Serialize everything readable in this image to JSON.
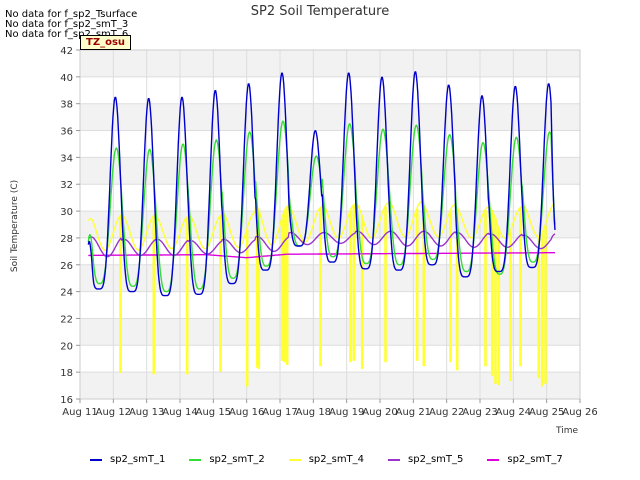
{
  "notes": [
    "No data for f_sp2_Tsurface",
    "No data for f_sp2_smT_3",
    "No data for f_sp2_smT_6"
  ],
  "tz_label": "TZ_osu",
  "chart_data": {
    "type": "line",
    "title": "SP2 Soil Temperature",
    "xlabel": "Time",
    "ylabel": "Soil Temperature (C)",
    "x_ticks": [
      "Aug 11",
      "Aug 12",
      "Aug 13",
      "Aug 14",
      "Aug 15",
      "Aug 16",
      "Aug 17",
      "Aug 18",
      "Aug 19",
      "Aug 20",
      "Aug 21",
      "Aug 22",
      "Aug 23",
      "Aug 24",
      "Aug 25",
      "Aug 26"
    ],
    "xlim": [
      0,
      15
    ],
    "ylim": [
      16,
      42
    ],
    "y_ticks": [
      16,
      18,
      20,
      22,
      24,
      26,
      28,
      30,
      32,
      34,
      36,
      38,
      40,
      42
    ],
    "grid": true,
    "legend_position": "bottom",
    "series_style": {
      "sp2_smT_1": "#0000cc",
      "sp2_smT_2": "#33dd33",
      "sp2_smT_4": "#ffff33",
      "sp2_smT_5": "#9933cc",
      "sp2_smT_7": "#dd00dd"
    },
    "series": [
      {
        "name": "sp2_smT_1",
        "color": "#0000cc",
        "x_start": 0.25,
        "x_end": 14.25,
        "daily_min": [
          24.2,
          24.0,
          23.7,
          23.8,
          24.6,
          25.6,
          27.4,
          26.2,
          25.7,
          25.6,
          26.0,
          25.1,
          25.5,
          25.8
        ],
        "daily_max": [
          38.5,
          38.4,
          38.5,
          39.0,
          39.5,
          40.3,
          36.0,
          40.3,
          40.0,
          40.4,
          39.4,
          38.6,
          39.3,
          39.5
        ],
        "start_value": 27.5,
        "end_value": 28.6
      },
      {
        "name": "sp2_smT_2",
        "color": "#33dd33",
        "x_start": 0.25,
        "x_end": 14.25,
        "daily_min": [
          24.6,
          24.4,
          24.0,
          24.2,
          25.0,
          25.9,
          27.4,
          26.6,
          26.1,
          26.0,
          26.4,
          25.5,
          25.3,
          26.2
        ],
        "daily_max": [
          34.7,
          34.6,
          35.0,
          35.3,
          35.9,
          36.7,
          34.1,
          36.5,
          36.1,
          36.4,
          35.7,
          35.1,
          35.5,
          35.9
        ],
        "start_value": 27.7,
        "end_value": 29.0
      },
      {
        "name": "sp2_smT_4",
        "color": "#ffff33",
        "x_start": 0.25,
        "x_end": 14.25,
        "daily_min": [
          27.1,
          27.1,
          27.2,
          27.2,
          27.3,
          27.5,
          27.7,
          28.0,
          28.0,
          28.1,
          28.1,
          28.0,
          28.0,
          28.1
        ],
        "daily_max": [
          29.7,
          29.7,
          29.6,
          29.7,
          29.9,
          30.4,
          30.3,
          30.5,
          30.6,
          30.7,
          30.5,
          30.3,
          30.3,
          30.5
        ],
        "start_value": 29.3,
        "end_value": 30.5,
        "dropout_days": [
          1.2,
          2.2,
          3.2,
          4.2,
          5.0,
          5.3,
          5.35,
          6.05,
          6.12,
          6.2,
          7.2,
          8.1,
          8.2,
          8.45,
          9.15,
          10.1,
          10.3,
          11.1,
          11.3,
          12.15,
          12.35,
          12.45,
          12.55,
          12.9,
          13.2,
          13.75,
          13.85,
          13.95
        ],
        "dropout_low": [
          18.0,
          17.9,
          17.9,
          18.1,
          17.0,
          18.4,
          18.3,
          18.9,
          18.8,
          18.6,
          18.5,
          18.8,
          18.9,
          18.3,
          18.8,
          18.9,
          18.5,
          18.8,
          18.2,
          18.5,
          17.8,
          17.2,
          17.1,
          17.4,
          18.5,
          17.6,
          17.0,
          17.2
        ]
      },
      {
        "name": "sp2_smT_5",
        "color": "#9933cc",
        "x_start": 0.25,
        "x_end": 14.25,
        "daily_min": [
          26.6,
          26.7,
          26.7,
          26.8,
          26.9,
          27.0,
          27.5,
          27.6,
          27.5,
          27.4,
          27.4,
          27.3,
          27.3,
          27.2
        ],
        "daily_max": [
          28.1,
          27.9,
          27.9,
          27.8,
          27.9,
          28.1,
          28.4,
          28.4,
          28.5,
          28.5,
          28.5,
          28.4,
          28.3,
          28.2
        ],
        "start_value": 28.0,
        "end_value": 28.3
      },
      {
        "name": "sp2_smT_7",
        "color": "#dd00dd",
        "x_start": 0.25,
        "x_end": 14.25,
        "start_value": 26.7,
        "end_value": 26.9,
        "dip_value": 26.4,
        "dip_x": 5.0
      }
    ]
  }
}
